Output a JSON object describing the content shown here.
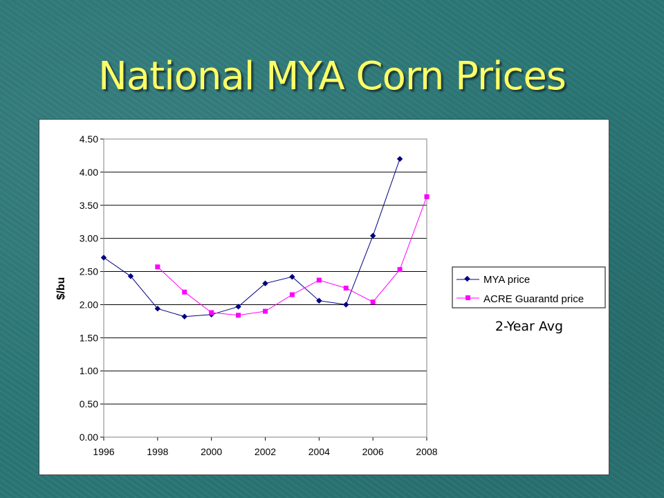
{
  "slide": {
    "title": "National MYA Corn Prices"
  },
  "chart_data": {
    "type": "line",
    "title": "",
    "xlabel": "",
    "ylabel": "$/bu",
    "xlim": [
      1996,
      2008
    ],
    "ylim": [
      0,
      4.5
    ],
    "x_ticks": [
      "1996",
      "1998",
      "2000",
      "2002",
      "2004",
      "2006",
      "2008"
    ],
    "y_ticks": [
      "0.00",
      "0.50",
      "1.00",
      "1.50",
      "2.00",
      "2.50",
      "3.00",
      "3.50",
      "4.00",
      "4.50"
    ],
    "grid": "horizontal",
    "legend_position": "right",
    "annotation": "2-Year Avg",
    "series": [
      {
        "name": "MYA price",
        "color": "#000080",
        "marker": "diamond",
        "x": [
          1996,
          1997,
          1998,
          1999,
          2000,
          2001,
          2002,
          2003,
          2004,
          2005,
          2006,
          2007
        ],
        "values": [
          2.71,
          2.43,
          1.94,
          1.82,
          1.85,
          1.97,
          2.32,
          2.42,
          2.06,
          2.0,
          3.04,
          4.2
        ]
      },
      {
        "name": "ACRE Guarantd price",
        "color": "#ff00ff",
        "marker": "square",
        "x": [
          1998,
          1999,
          2000,
          2001,
          2002,
          2003,
          2004,
          2005,
          2006,
          2007,
          2008
        ],
        "values": [
          2.57,
          2.19,
          1.88,
          1.84,
          1.9,
          2.15,
          2.37,
          2.25,
          2.04,
          2.53,
          3.63
        ]
      }
    ]
  }
}
